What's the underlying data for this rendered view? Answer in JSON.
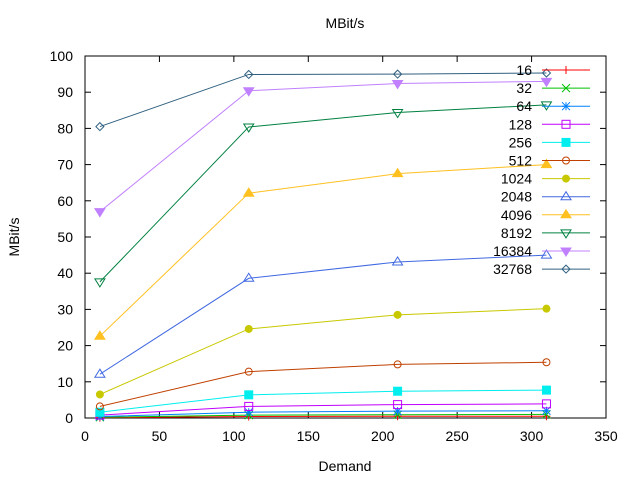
{
  "chart_data": {
    "type": "line",
    "title": "MBit/s",
    "xlabel": "Demand",
    "ylabel": "MBit/s",
    "xlim": [
      0,
      350
    ],
    "ylim": [
      0,
      100
    ],
    "xticks": [
      0,
      50,
      100,
      150,
      200,
      250,
      300,
      350
    ],
    "yticks": [
      0,
      10,
      20,
      30,
      40,
      50,
      60,
      70,
      80,
      90,
      100
    ],
    "grid": false,
    "legend_position": "top-right",
    "x": [
      10,
      110,
      210,
      310
    ],
    "series": [
      {
        "name": "16",
        "color": "#ff0000",
        "marker": "plus",
        "values": [
          0.1,
          0.4,
          0.5,
          0.5
        ]
      },
      {
        "name": "32",
        "color": "#00c000",
        "marker": "cross",
        "values": [
          0.2,
          0.8,
          0.9,
          1.0
        ]
      },
      {
        "name": "64",
        "color": "#0080ff",
        "marker": "star",
        "values": [
          0.4,
          1.6,
          1.9,
          2.0
        ]
      },
      {
        "name": "128",
        "color": "#c000ff",
        "marker": "square-open",
        "values": [
          0.8,
          3.2,
          3.7,
          3.9
        ]
      },
      {
        "name": "256",
        "color": "#00eeee",
        "marker": "square-filled",
        "values": [
          1.6,
          6.4,
          7.4,
          7.7
        ]
      },
      {
        "name": "512",
        "color": "#c04000",
        "marker": "circle-open",
        "values": [
          3.2,
          12.8,
          14.8,
          15.4
        ]
      },
      {
        "name": "1024",
        "color": "#c8c800",
        "marker": "circle-filled",
        "values": [
          6.5,
          24.6,
          28.5,
          30.2
        ]
      },
      {
        "name": "2048",
        "color": "#4169e1",
        "marker": "triangle-open",
        "values": [
          12.1,
          38.6,
          43.1,
          45.0
        ]
      },
      {
        "name": "4096",
        "color": "#ffc020",
        "marker": "triangle-filled",
        "values": [
          22.6,
          62.1,
          67.5,
          70.0
        ]
      },
      {
        "name": "8192",
        "color": "#008040",
        "marker": "invtriangle-open",
        "values": [
          37.6,
          80.4,
          84.4,
          86.5
        ]
      },
      {
        "name": "16384",
        "color": "#c080ff",
        "marker": "invtriangle-filled",
        "values": [
          57.0,
          90.4,
          92.4,
          93.0
        ]
      },
      {
        "name": "32768",
        "color": "#306080",
        "marker": "diamond-open",
        "values": [
          80.5,
          94.9,
          95.0,
          95.3
        ]
      }
    ]
  }
}
